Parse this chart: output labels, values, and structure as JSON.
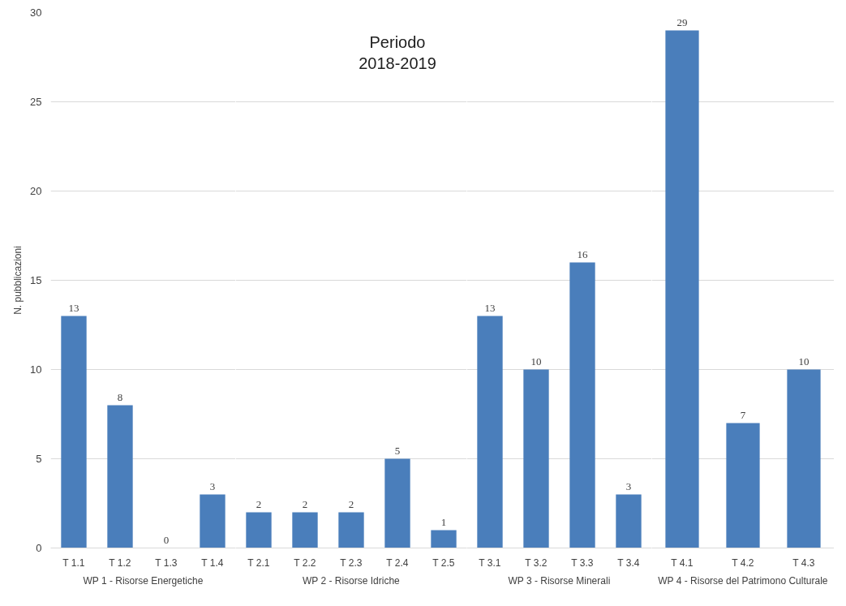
{
  "chart_data": [
    {
      "type": "bar",
      "xlabel": "WP 1 - Risorse Energetiche",
      "ylabel": "N. pubblicazioni",
      "categories": [
        "T 1.1",
        "T 1.2",
        "T 1.3",
        "T 1.4"
      ],
      "values": [
        13,
        8,
        0,
        3
      ],
      "color": "#4a7ebb",
      "ylim": [
        0,
        30
      ],
      "yticks": [
        0,
        5,
        10,
        15,
        20,
        25,
        30
      ],
      "grid": "y",
      "data_labels": true
    },
    {
      "type": "bar",
      "title": "Periodo\n2018-2019",
      "xlabel": "WP 2 - Risorse Idriche",
      "categories": [
        "T 2.1",
        "T 2.2",
        "T 2.3",
        "T 2.4",
        "T 2.5"
      ],
      "values": [
        2,
        2,
        2,
        5,
        1
      ],
      "color": "#4a7ebb",
      "ylim": [
        0,
        30
      ],
      "yticks": [
        0,
        5,
        10,
        15,
        20,
        25,
        30
      ],
      "grid": "y",
      "data_labels": true,
      "tick_labels": "x"
    },
    {
      "type": "bar",
      "xlabel": "WP 3 - Risorse Minerali",
      "categories": [
        "T 3.1",
        "T 3.2",
        "T 3.3",
        "T 3.4"
      ],
      "values": [
        13,
        10,
        16,
        3
      ],
      "color": "#4a7ebb",
      "ylim": [
        0,
        30
      ],
      "yticks": [
        0,
        5,
        10,
        15,
        20,
        25,
        30
      ],
      "grid": "y",
      "data_labels": true,
      "tick_labels": "x"
    },
    {
      "type": "bar",
      "xlabel": "WP 4 - Risorse del Patrimono Culturale",
      "categories": [
        "T 4.1",
        "T 4.2",
        "T 4.3"
      ],
      "values": [
        29,
        7,
        10
      ],
      "color": "#4a7ebb",
      "ylim": [
        0,
        30
      ],
      "yticks": [
        0,
        5,
        10,
        15,
        20,
        25,
        30
      ],
      "grid": "y",
      "data_labels": true,
      "tick_labels": "x"
    }
  ]
}
